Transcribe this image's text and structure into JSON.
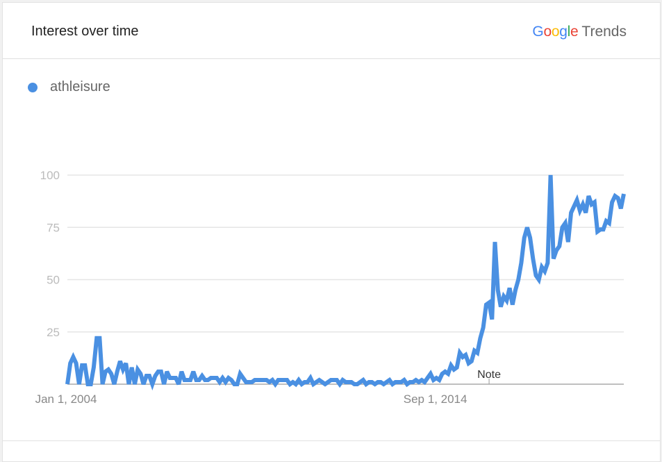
{
  "header": {
    "title": "Interest over time",
    "logo_google": "Google",
    "logo_trends": "Trends"
  },
  "colors": {
    "series": "#4a90e2",
    "grid": "#e5e5e5",
    "axis": "#aaaaaa"
  },
  "chart_data": {
    "type": "line",
    "title": "",
    "xlabel": "",
    "ylabel": "",
    "ylim": [
      0,
      100
    ],
    "yticks": [
      "25",
      "50",
      "75",
      "100"
    ],
    "xticks": [
      {
        "label": "Jan 1, 2004",
        "date": "2004-01"
      },
      {
        "label": "Sep 1, 2014",
        "date": "2014-09"
      }
    ],
    "annotation": {
      "label": "Note",
      "date": "2016-01"
    },
    "grid": true,
    "legend_position": "top-left",
    "frequency": "monthly",
    "start_date": "2004-01",
    "series": [
      {
        "name": "athleisure",
        "values": [
          0,
          10,
          13,
          10,
          0,
          9,
          9,
          0,
          0,
          8,
          22,
          22,
          0,
          6,
          7,
          5,
          0,
          6,
          11,
          7,
          10,
          0,
          8,
          0,
          7,
          5,
          0,
          4,
          4,
          0,
          4,
          6,
          6,
          0,
          6,
          3,
          3,
          3,
          0,
          6,
          2,
          2,
          2,
          6,
          2,
          2,
          4,
          2,
          2,
          3,
          3,
          3,
          1,
          3,
          1,
          3,
          2,
          0,
          0,
          5,
          3,
          1,
          1,
          1,
          2,
          2,
          2,
          2,
          2,
          1,
          2,
          0,
          2,
          2,
          2,
          2,
          0,
          1,
          0,
          2,
          0,
          1,
          1,
          3,
          0,
          1,
          2,
          1,
          0,
          1,
          2,
          2,
          2,
          0,
          2,
          1,
          1,
          1,
          0,
          0,
          1,
          2,
          0,
          1,
          1,
          0,
          1,
          1,
          0,
          1,
          2,
          0,
          1,
          1,
          1,
          2,
          0,
          1,
          1,
          2,
          1,
          2,
          1,
          3,
          5,
          2,
          3,
          2,
          5,
          6,
          5,
          9,
          7,
          8,
          15,
          13,
          14,
          10,
          11,
          16,
          15,
          22,
          27,
          38,
          39,
          31,
          68,
          45,
          37,
          42,
          40,
          46,
          38,
          45,
          50,
          58,
          70,
          75,
          70,
          60,
          52,
          50,
          56,
          54,
          58,
          100,
          60,
          64,
          66,
          75,
          77,
          68,
          82,
          85,
          88,
          83,
          86,
          82,
          90,
          86,
          87,
          73,
          74,
          74,
          78,
          77,
          87,
          90,
          89,
          84,
          91
        ]
      }
    ]
  }
}
